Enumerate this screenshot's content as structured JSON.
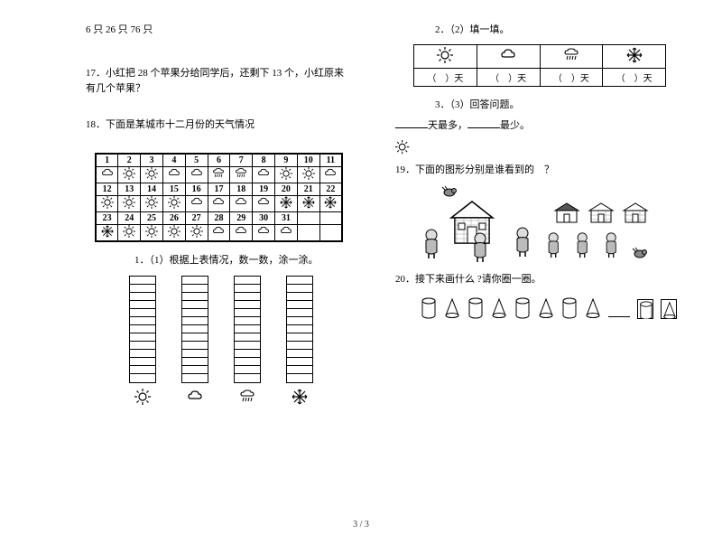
{
  "col1": {
    "top_line": "6 只 26 只 76 只",
    "q17": {
      "num": "17．",
      "text": "小红把 28 个苹果分给同学后，还剩下 13 个，小红原来有几个苹果？"
    },
    "q18": {
      "num": "18．",
      "text": "下面是某城市十二月份的天气情况",
      "calendar_nums": [
        [
          "1",
          "2",
          "3",
          "4",
          "5",
          "6",
          "7",
          "8",
          "9",
          "10",
          "11"
        ],
        [
          "12",
          "13",
          "14",
          "15",
          "16",
          "17",
          "18",
          "19",
          "20",
          "21",
          "22"
        ],
        [
          "23",
          "24",
          "25",
          "26",
          "27",
          "28",
          "29",
          "30",
          "31",
          "",
          ""
        ]
      ],
      "calendar_wx": [
        [
          "cloud",
          "sun",
          "sun",
          "cloud",
          "cloud",
          "rain",
          "rain",
          "cloud",
          "sun",
          "sun",
          "cloud"
        ],
        [
          "sun",
          "sun",
          "sun",
          "sun",
          "cloud",
          "cloud",
          "cloud",
          "cloud",
          "snow",
          "snow",
          "snow"
        ],
        [
          "snow",
          "sun",
          "sun",
          "sun",
          "sun",
          "cloud",
          "cloud",
          "cloud",
          "cloud",
          "",
          ""
        ]
      ],
      "sub1": "1．（1）根据上表情况，数一数，涂一涂。",
      "tally_cells": 13,
      "tally_icons": [
        "sun",
        "cloud",
        "rain",
        "snow"
      ]
    }
  },
  "col2": {
    "q18_sub2": "2．（2）填一填。",
    "fill_icons": [
      "sun",
      "cloud",
      "rain",
      "snow"
    ],
    "fill_label_l": "（",
    "fill_label_r": "）天",
    "q18_sub3": "3．（3）回答问题。",
    "q18_sub3_line": "天最多，",
    "q18_sub3_line2": "最少。",
    "q19": {
      "num": "19．",
      "text": "下面的图形分别是谁看到的　？"
    },
    "q20": {
      "num": "20．",
      "text": "接下来画什么 ?请你圈一圈。",
      "shapes": [
        "cyl",
        "cone",
        "cyl",
        "cone",
        "cyl",
        "cone",
        "cyl",
        "cone"
      ],
      "answer_shapes": [
        "cyl",
        "cone"
      ]
    }
  },
  "footer": "3 / 3",
  "colors": {
    "text": "#000000",
    "bg": "#ffffff",
    "border": "#000000"
  }
}
